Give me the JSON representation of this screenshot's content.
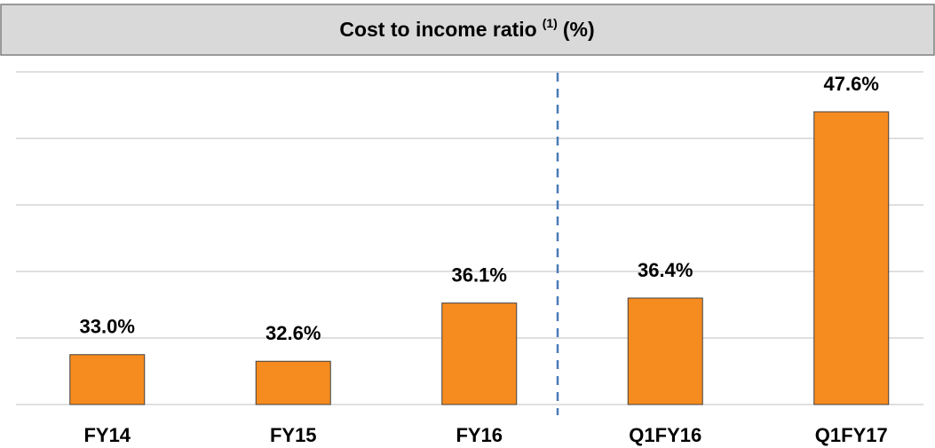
{
  "chart_data": {
    "type": "bar",
    "title": "Cost to income ratio",
    "title_superscript": "(1)",
    "title_unit": "(%)",
    "categories": [
      "FY14",
      "FY15",
      "FY16",
      "Q1FY16",
      "Q1FY17"
    ],
    "values": [
      33.0,
      32.6,
      36.1,
      36.4,
      47.6
    ],
    "value_labels": [
      "33.0%",
      "32.6%",
      "36.1%",
      "36.4%",
      "47.6%"
    ],
    "color": "#f68b1f",
    "ylim": [
      30,
      50
    ],
    "yticks": [
      30,
      34,
      38,
      42,
      46,
      50
    ],
    "grid": true
  }
}
